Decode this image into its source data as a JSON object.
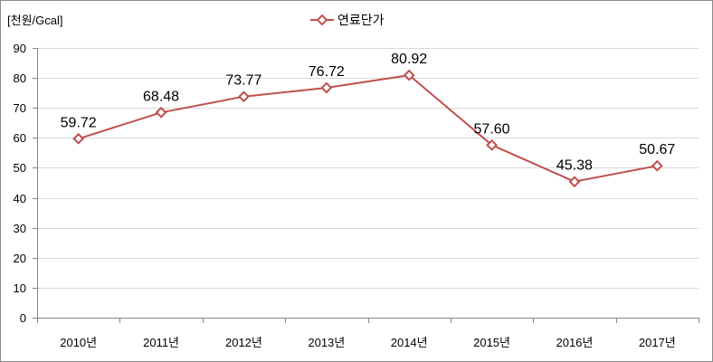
{
  "chart_data": {
    "type": "line",
    "ylabel": "[천원/Gcal]",
    "xlabel": "",
    "categories": [
      "2010년",
      "2011년",
      "2012년",
      "2013년",
      "2014년",
      "2015년",
      "2016년",
      "2017년"
    ],
    "series": [
      {
        "name": "연료단가",
        "values": [
          59.72,
          68.48,
          73.77,
          76.72,
          80.92,
          57.6,
          45.38,
          50.67
        ],
        "labels": [
          "59.72",
          "68.48",
          "73.77",
          "76.72",
          "80.92",
          "57.60",
          "45.38",
          "50.67"
        ],
        "marker": "diamond"
      }
    ],
    "ylim": [
      0,
      90
    ],
    "yticks": [
      0,
      10,
      20,
      30,
      40,
      50,
      60,
      70,
      80,
      90
    ],
    "grid": true,
    "legend": "top-center"
  },
  "colors": {
    "series": "#C0504D",
    "grid": "#D9D9D9",
    "axis": "#868686",
    "border": "#8C8C8C",
    "marker_fill": "#FFFFFF"
  }
}
